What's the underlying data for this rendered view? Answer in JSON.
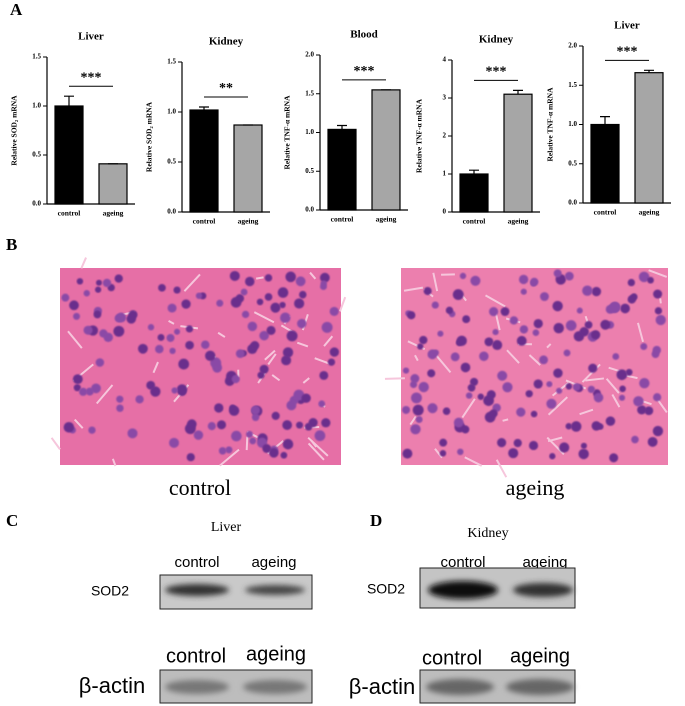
{
  "chart_data": [
    {
      "type": "bar",
      "title": "Liver",
      "y_label": "Relative SOD₂ mRNA",
      "categories": [
        "control",
        "ageing"
      ],
      "values": [
        1.0,
        0.41
      ],
      "errors": [
        0.1,
        0
      ],
      "colors": [
        "#000000",
        "#a6a6a6"
      ],
      "significance": "***",
      "ylim": [
        0,
        1.5
      ],
      "yticks": [
        {
          "value": 0,
          "label": "0.0"
        },
        0.5,
        {
          "value": 1,
          "label": "1.0"
        },
        1.5
      ]
    },
    {
      "type": "bar",
      "title": "Kidney",
      "y_label": "Relative SOD₂ mRNA",
      "categories": [
        "control",
        "ageing"
      ],
      "values": [
        1.02,
        0.87
      ],
      "errors": [
        0.03,
        0
      ],
      "colors": [
        "#000000",
        "#a6a6a6"
      ],
      "significance": "**",
      "ylim": [
        0,
        1.5
      ],
      "yticks": [
        {
          "value": 0,
          "label": "0.0"
        },
        0.5,
        {
          "value": 1,
          "label": "1.0"
        },
        1.5
      ]
    },
    {
      "type": "bar",
      "title": "Blood",
      "y_label": "Relative TNF-α mRNA",
      "categories": [
        "control",
        "ageing"
      ],
      "values": [
        1.04,
        1.55
      ],
      "errors": [
        0.05,
        0
      ],
      "colors": [
        "#000000",
        "#a6a6a6"
      ],
      "significance": "***",
      "ylim": [
        0,
        2
      ],
      "yticks": [
        {
          "value": 0,
          "label": "0.0"
        },
        0.5,
        {
          "value": 1,
          "label": "1.0"
        },
        1.5,
        {
          "value": 2,
          "label": "2.0"
        }
      ]
    },
    {
      "type": "bar",
      "title": "Kidney",
      "y_label": "Relative TNF-α mRNA",
      "categories": [
        "control",
        "ageing"
      ],
      "values": [
        1.0,
        3.1
      ],
      "errors": [
        0.1,
        0.1
      ],
      "colors": [
        "#000000",
        "#a6a6a6"
      ],
      "significance": "***",
      "ylim": [
        0,
        4
      ],
      "yticks": [
        0,
        1,
        2,
        3,
        4
      ]
    },
    {
      "type": "bar",
      "title": "Liver",
      "y_label": "Relative TNF-α mRNA",
      "categories": [
        "control",
        "ageing"
      ],
      "values": [
        1.0,
        1.66
      ],
      "errors": [
        0.1,
        0.03
      ],
      "colors": [
        "#000000",
        "#a6a6a6"
      ],
      "significance": "***",
      "ylim": [
        0,
        2
      ],
      "yticks": [
        {
          "value": 0,
          "label": "0.0"
        },
        0.5,
        {
          "value": 1,
          "label": "1.0"
        },
        1.5,
        {
          "value": 2,
          "label": "2.0"
        }
      ]
    }
  ],
  "panel_labels": [
    "A",
    "B",
    "C",
    "D"
  ],
  "histology": {
    "labels": [
      "control",
      "ageing"
    ]
  },
  "western_blots": [
    {
      "tissue": "Liver",
      "rows": [
        {
          "protein": "SOD2",
          "lanes": [
            "control",
            "ageing"
          ]
        },
        {
          "protein": "β-actin",
          "lanes": [
            "control",
            "ageing"
          ]
        }
      ]
    },
    {
      "tissue": "Kidney",
      "rows": [
        {
          "protein": "SOD2",
          "lanes": [
            "control",
            "ageing"
          ]
        },
        {
          "protein": "β-actin",
          "lanes": [
            "control",
            "ageing"
          ]
        }
      ]
    }
  ]
}
